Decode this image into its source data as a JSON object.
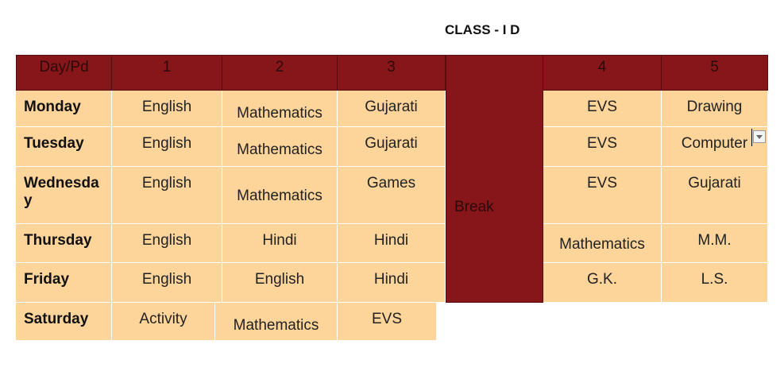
{
  "title": "CLASS - I D",
  "headers": [
    "Day/Pd",
    "1",
    "2",
    "3",
    "4",
    "5"
  ],
  "break_label": "Break",
  "rows": [
    {
      "day": "Monday",
      "cells": [
        "English",
        "Mathematics",
        "Gujarati",
        "EVS",
        "Drawing"
      ]
    },
    {
      "day": "Tuesday",
      "cells": [
        "English",
        "Mathematics",
        "Gujarati",
        "EVS",
        "Computer"
      ]
    },
    {
      "day": "Wednesday",
      "cells": [
        "English",
        "Mathematics",
        "Games",
        "EVS",
        "Gujarati"
      ]
    },
    {
      "day": "Thursday",
      "cells": [
        "English",
        "Hindi",
        "Hindi",
        "Mathematics",
        "M.M."
      ]
    },
    {
      "day": "Friday",
      "cells": [
        "English",
        "English",
        "Hindi",
        "G.K.",
        "L.S."
      ]
    },
    {
      "day": "Saturday",
      "cells": [
        "Activity",
        "Mathematics",
        "EVS"
      ]
    }
  ]
}
